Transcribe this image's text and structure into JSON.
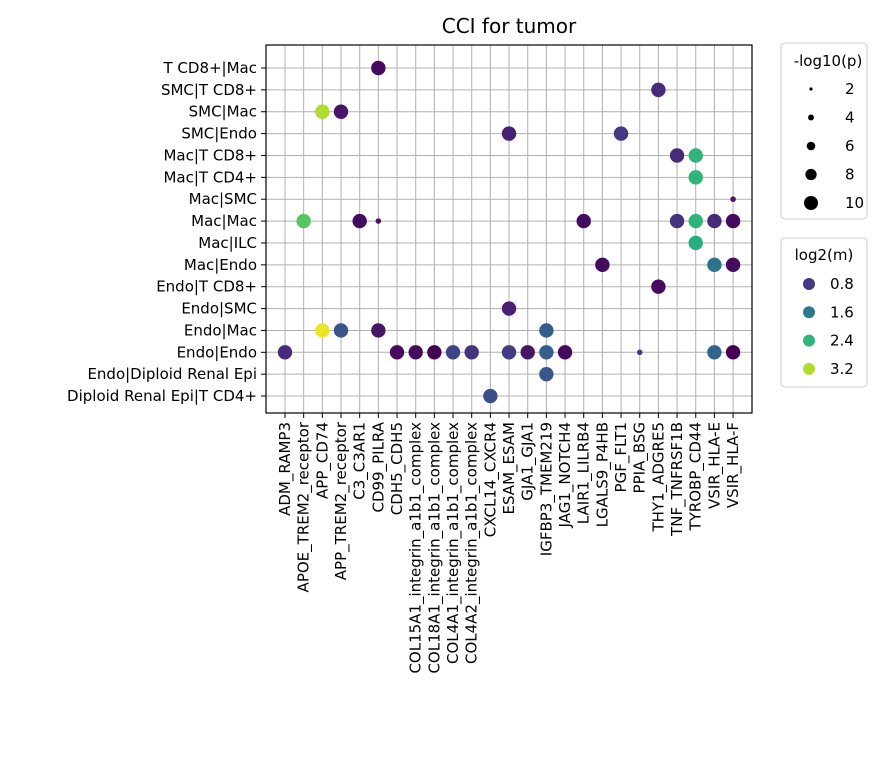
{
  "chart_data": {
    "type": "scatter",
    "title": "CCI for tumor",
    "x_categories": [
      "ADM_RAMP3",
      "APOE_TREM2_receptor",
      "APP_CD74",
      "APP_TREM2_receptor",
      "C3_C3AR1",
      "CD99_PILRA",
      "CDH5_CDH5",
      "COL15A1_integrin_a1b1_complex",
      "COL18A1_integrin_a1b1_complex",
      "COL4A1_integrin_a1b1_complex",
      "COL4A2_integrin_a1b1_complex",
      "CXCL14_CXCR4",
      "ESAM_ESAM",
      "GJA1_GJA1",
      "IGFBP3_TMEM219",
      "JAG1_NOTCH4",
      "LAIR1_LILRB4",
      "LGALS9_P4HB",
      "PGF_FLT1",
      "PPIA_BSG",
      "THY1_ADGRE5",
      "TNF_TNFRSF1B",
      "TYROBP_CD44",
      "VSIR_HLA-E",
      "VSIR_HLA-F"
    ],
    "y_categories": [
      "T CD8+|Mac",
      "SMC|T CD8+",
      "SMC|Mac",
      "SMC|Endo",
      "Mac|T CD8+",
      "Mac|T CD4+",
      "Mac|SMC",
      "Mac|Mac",
      "Mac|ILC",
      "Mac|Endo",
      "Endo|T CD8+",
      "Endo|SMC",
      "Endo|Mac",
      "Endo|Endo",
      "Endo|Diploid Renal Epi",
      "Diploid Renal Epi|T CD4+"
    ],
    "grid": true,
    "colormap": "viridis",
    "color_range": [
      0.2,
      3.6
    ],
    "size_legend": {
      "title": "-log10(p)",
      "values": [
        "2",
        "4",
        "6",
        "8",
        "10"
      ],
      "placement": "right"
    },
    "color_legend": {
      "title": "log2(m)",
      "values": [
        "0.8",
        "1.6",
        "2.4",
        "3.2"
      ],
      "placement": "right"
    },
    "points": [
      {
        "x": "CD99_PILRA",
        "y": "T CD8+|Mac",
        "neglog10p": 10,
        "log2m": 0.3
      },
      {
        "x": "THY1_ADGRE5",
        "y": "SMC|T CD8+",
        "neglog10p": 10,
        "log2m": 0.6
      },
      {
        "x": "APP_CD74",
        "y": "SMC|Mac",
        "neglog10p": 10,
        "log2m": 3.2
      },
      {
        "x": "APP_TREM2_receptor",
        "y": "SMC|Mac",
        "neglog10p": 10,
        "log2m": 0.4
      },
      {
        "x": "ESAM_ESAM",
        "y": "SMC|Endo",
        "neglog10p": 10,
        "log2m": 0.5
      },
      {
        "x": "PGF_FLT1",
        "y": "SMC|Endo",
        "neglog10p": 10,
        "log2m": 0.8
      },
      {
        "x": "TNF_TNFRSF1B",
        "y": "Mac|T CD8+",
        "neglog10p": 10,
        "log2m": 0.6
      },
      {
        "x": "TYROBP_CD44",
        "y": "Mac|T CD8+",
        "neglog10p": 10,
        "log2m": 2.4
      },
      {
        "x": "TYROBP_CD44",
        "y": "Mac|T CD4+",
        "neglog10p": 10,
        "log2m": 2.4
      },
      {
        "x": "VSIR_HLA-F",
        "y": "Mac|SMC",
        "neglog10p": 1.5,
        "log2m": 0.4
      },
      {
        "x": "APOE_TREM2_receptor",
        "y": "Mac|Mac",
        "neglog10p": 10,
        "log2m": 2.7
      },
      {
        "x": "C3_C3AR1",
        "y": "Mac|Mac",
        "neglog10p": 10,
        "log2m": 0.3
      },
      {
        "x": "CD99_PILRA",
        "y": "Mac|Mac",
        "neglog10p": 1.5,
        "log2m": 0.4
      },
      {
        "x": "LAIR1_LILRB4",
        "y": "Mac|Mac",
        "neglog10p": 10,
        "log2m": 0.3
      },
      {
        "x": "TNF_TNFRSF1B",
        "y": "Mac|Mac",
        "neglog10p": 10,
        "log2m": 0.7
      },
      {
        "x": "TYROBP_CD44",
        "y": "Mac|Mac",
        "neglog10p": 10,
        "log2m": 2.4
      },
      {
        "x": "VSIR_HLA-E",
        "y": "Mac|Mac",
        "neglog10p": 10,
        "log2m": 0.6
      },
      {
        "x": "VSIR_HLA-F",
        "y": "Mac|Mac",
        "neglog10p": 10,
        "log2m": 0.3
      },
      {
        "x": "TYROBP_CD44",
        "y": "Mac|ILC",
        "neglog10p": 10,
        "log2m": 2.3
      },
      {
        "x": "LGALS9_P4HB",
        "y": "Mac|Endo",
        "neglog10p": 10,
        "log2m": 0.3
      },
      {
        "x": "VSIR_HLA-E",
        "y": "Mac|Endo",
        "neglog10p": 10,
        "log2m": 1.5
      },
      {
        "x": "VSIR_HLA-F",
        "y": "Mac|Endo",
        "neglog10p": 10,
        "log2m": 0.3
      },
      {
        "x": "THY1_ADGRE5",
        "y": "Endo|T CD8+",
        "neglog10p": 10,
        "log2m": 0.3
      },
      {
        "x": "ESAM_ESAM",
        "y": "Endo|SMC",
        "neglog10p": 10,
        "log2m": 0.5
      },
      {
        "x": "APP_CD74",
        "y": "Endo|Mac",
        "neglog10p": 10,
        "log2m": 3.5
      },
      {
        "x": "APP_TREM2_receptor",
        "y": "Endo|Mac",
        "neglog10p": 10,
        "log2m": 1.1
      },
      {
        "x": "CD99_PILRA",
        "y": "Endo|Mac",
        "neglog10p": 10,
        "log2m": 0.4
      },
      {
        "x": "IGFBP3_TMEM219",
        "y": "Endo|Mac",
        "neglog10p": 10,
        "log2m": 1.2
      },
      {
        "x": "ADM_RAMP3",
        "y": "Endo|Endo",
        "neglog10p": 10,
        "log2m": 0.6
      },
      {
        "x": "CDH5_CDH5",
        "y": "Endo|Endo",
        "neglog10p": 10,
        "log2m": 0.3
      },
      {
        "x": "COL15A1_integrin_a1b1_complex",
        "y": "Endo|Endo",
        "neglog10p": 10,
        "log2m": 0.3
      },
      {
        "x": "COL18A1_integrin_a1b1_complex",
        "y": "Endo|Endo",
        "neglog10p": 10,
        "log2m": 0.2
      },
      {
        "x": "COL4A1_integrin_a1b1_complex",
        "y": "Endo|Endo",
        "neglog10p": 10,
        "log2m": 0.9
      },
      {
        "x": "COL4A2_integrin_a1b1_complex",
        "y": "Endo|Endo",
        "neglog10p": 10,
        "log2m": 0.7
      },
      {
        "x": "ESAM_ESAM",
        "y": "Endo|Endo",
        "neglog10p": 10,
        "log2m": 0.8
      },
      {
        "x": "GJA1_GJA1",
        "y": "Endo|Endo",
        "neglog10p": 10,
        "log2m": 0.4
      },
      {
        "x": "IGFBP3_TMEM219",
        "y": "Endo|Endo",
        "neglog10p": 10,
        "log2m": 1.2
      },
      {
        "x": "JAG1_NOTCH4",
        "y": "Endo|Endo",
        "neglog10p": 10,
        "log2m": 0.3
      },
      {
        "x": "PPIA_BSG",
        "y": "Endo|Endo",
        "neglog10p": 1.5,
        "log2m": 0.8
      },
      {
        "x": "VSIR_HLA-E",
        "y": "Endo|Endo",
        "neglog10p": 10,
        "log2m": 1.3
      },
      {
        "x": "VSIR_HLA-F",
        "y": "Endo|Endo",
        "neglog10p": 10,
        "log2m": 0.2
      },
      {
        "x": "IGFBP3_TMEM219",
        "y": "Endo|Diploid Renal Epi",
        "neglog10p": 10,
        "log2m": 1.1
      },
      {
        "x": "CXCL14_CXCR4",
        "y": "Diploid Renal Epi|T CD4+",
        "neglog10p": 10,
        "log2m": 1.0
      }
    ]
  }
}
